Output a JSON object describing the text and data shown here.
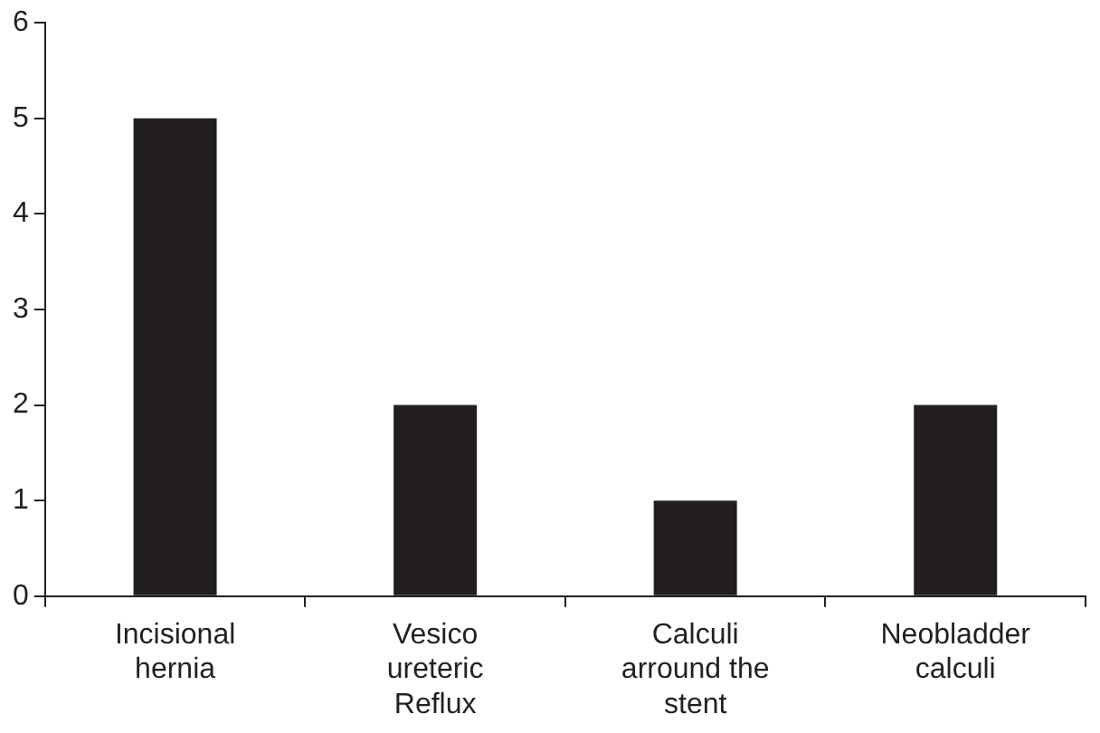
{
  "chart_data": {
    "type": "bar",
    "categories": [
      "Incisional hernia",
      "Vesico ureteric Reflux",
      "Calculi arround the stent",
      "Neobladder calculi"
    ],
    "values": [
      5,
      2,
      1,
      2
    ],
    "color": "#231f20",
    "ylim": [
      0,
      6
    ],
    "yticks": [
      0,
      1,
      2,
      3,
      4,
      5,
      6
    ],
    "grid": false,
    "legend": false
  }
}
